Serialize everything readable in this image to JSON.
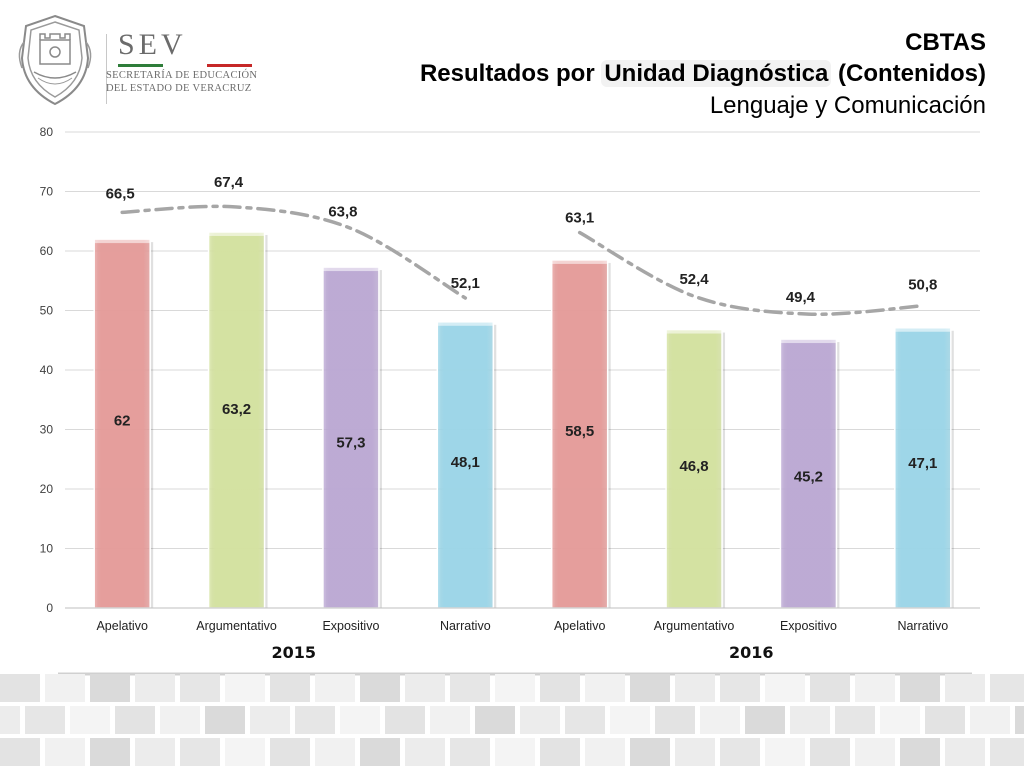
{
  "header": {
    "logo_name": "SEV",
    "logo_line1": "SECRETARÍA DE EDUCACIÓN",
    "logo_line2": "DEL ESTADO DE VERACRUZ",
    "logo_stripe_colors": [
      "#2f7d3a",
      "#ffffff",
      "#c62828"
    ],
    "title_line1": "CBTAS",
    "title_line2_prefix": "Resultados por ",
    "title_line2_highlight": "Unidad Diagnóstica",
    "title_line2_suffix": " (Contenidos)",
    "title_line3": "Lenguaje y Comunicación"
  },
  "chart_data": {
    "type": "bar",
    "categories": [
      "Apelativo",
      "Argumentativo",
      "Expositivo",
      "Narrativo",
      "Apelativo",
      "Argumentativo",
      "Expositivo",
      "Narrativo"
    ],
    "groups": [
      {
        "label": "2015",
        "span": [
          0,
          3
        ]
      },
      {
        "label": "2016",
        "span": [
          4,
          7
        ]
      }
    ],
    "series": [
      {
        "type": "bar",
        "values": [
          62,
          63.2,
          57.3,
          48.1,
          58.5,
          46.8,
          45.2,
          47.1
        ],
        "labels": [
          "62",
          "63,2",
          "57,3",
          "48,1",
          "58,5",
          "46,8",
          "45,2",
          "47,1"
        ],
        "colors": [
          "#e59c9a",
          "#d4e2a0",
          "#bca9d4",
          "#9cd6e8",
          "#e59c9a",
          "#d4e2a0",
          "#bca9d4",
          "#9cd6e8"
        ]
      },
      {
        "type": "line",
        "style": "dash-dot",
        "color": "#a6a6a6",
        "values": [
          66.5,
          67.4,
          63.8,
          52.1,
          63.1,
          52.4,
          49.4,
          50.8
        ],
        "labels": [
          "66,5",
          "67,4",
          "63,8",
          "52,1",
          "63,1",
          "52,4",
          "49,4",
          "50,8"
        ]
      }
    ],
    "ylim": [
      0,
      80
    ],
    "yticks": [
      0,
      10,
      20,
      30,
      40,
      50,
      60,
      70,
      80
    ],
    "grid": true
  }
}
